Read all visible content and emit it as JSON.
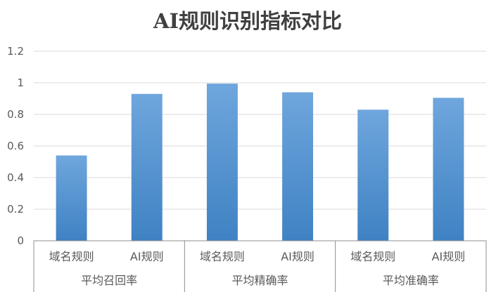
{
  "chart_data": {
    "type": "bar",
    "title": "AI规则识别指标对比",
    "xlabel": "",
    "ylabel": "",
    "ylim": [
      0,
      1.2
    ],
    "yticks": [
      "0",
      "0.2",
      "0.4",
      "0.6",
      "0.8",
      "1",
      "1.2"
    ],
    "groups": [
      {
        "label": "平均召回率",
        "categories": [
          "域名规则",
          "AI规则"
        ],
        "values": [
          0.54,
          0.93
        ]
      },
      {
        "label": "平均精确率",
        "categories": [
          "域名规则",
          "AI规则"
        ],
        "values": [
          0.995,
          0.94
        ]
      },
      {
        "label": "平均准确率",
        "categories": [
          "域名规则",
          "AI规则"
        ],
        "values": [
          0.83,
          0.905
        ]
      }
    ],
    "grid": true,
    "legend": "none",
    "colors": {
      "bar_top": "#6fa6dd",
      "bar_bottom": "#3f82c3",
      "grid": "#d9d9d9",
      "title": "#404040",
      "text": "#595959",
      "axis": "#8c8c8c"
    }
  }
}
